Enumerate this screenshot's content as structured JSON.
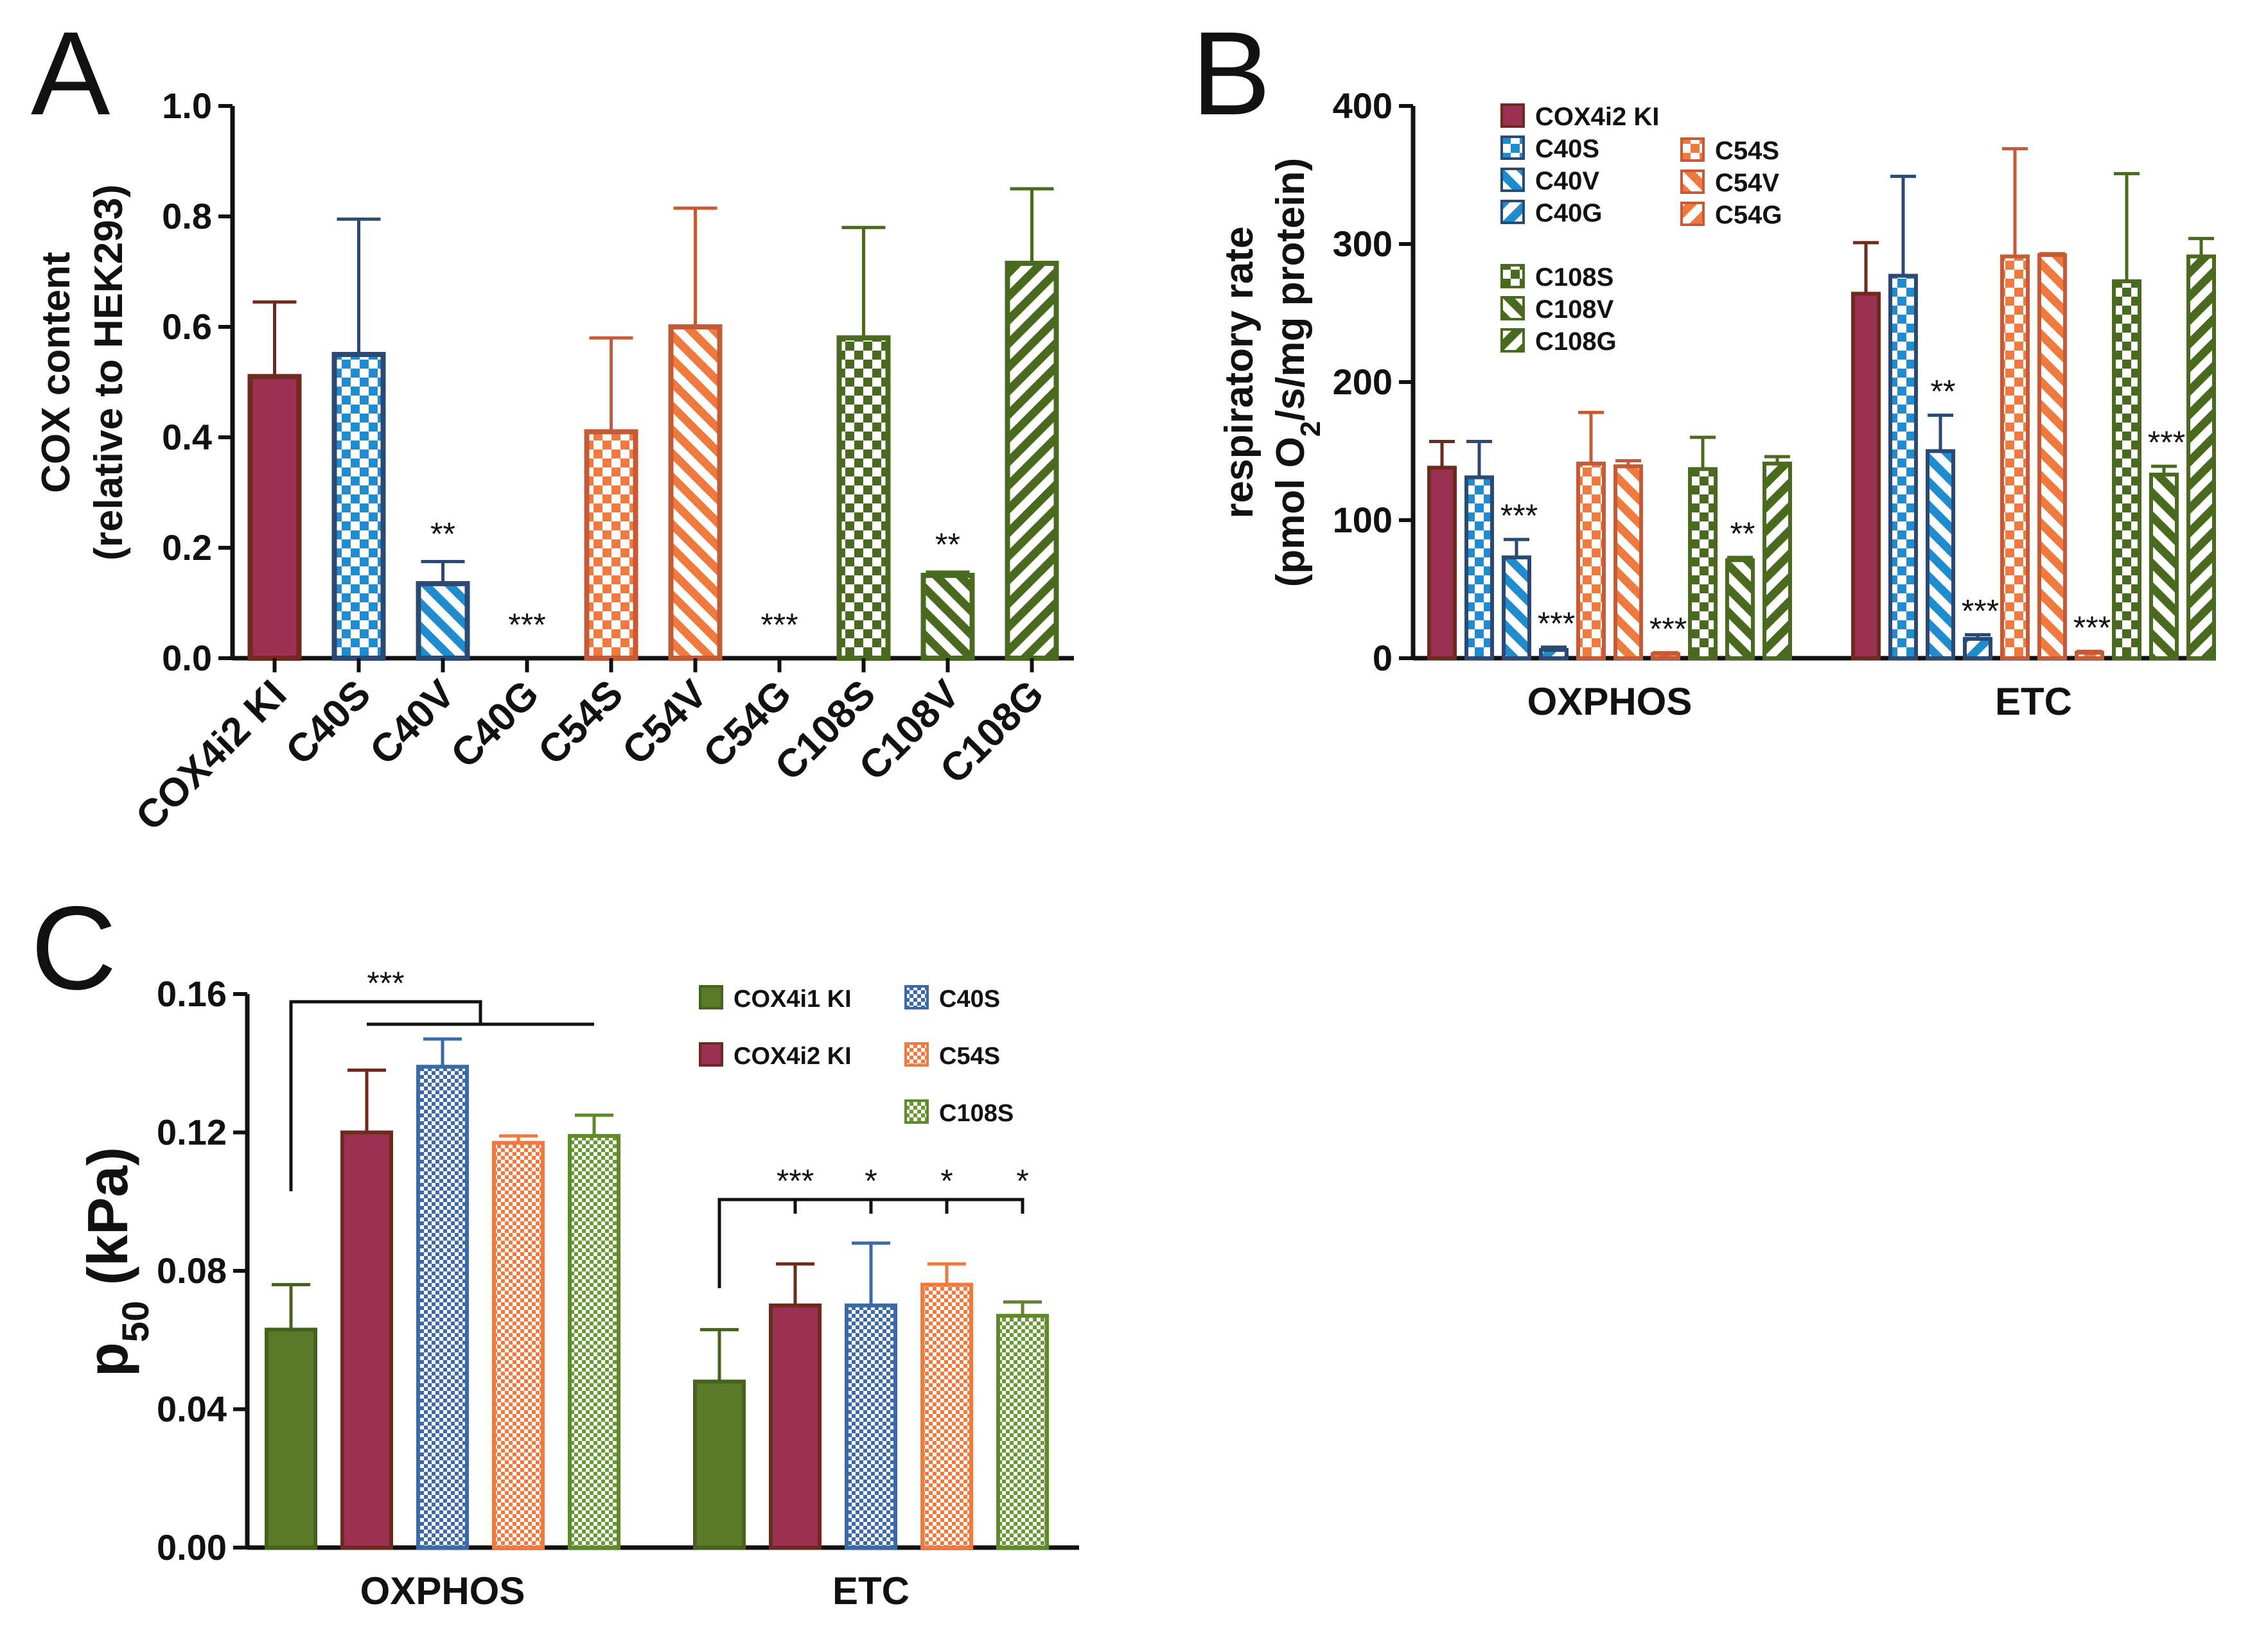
{
  "colors": {
    "cox4i2": "#9a3152",
    "cox4i2_edge": "#6e2a1c",
    "c40": "#1f8ccf",
    "c40_edge": "#2b4a73",
    "c54": "#f07a3e",
    "c54_edge": "#c45b35",
    "c108": "#4a6b1f",
    "cox4i1": "#5a7a2a"
  },
  "chart_data": [
    {
      "panel": "A",
      "type": "bar",
      "ylabel_line1": "COX content",
      "ylabel_line2": "(relative to HEK293)",
      "ylim": [
        0,
        1.0
      ],
      "yticks": [
        "0.0",
        "0.2",
        "0.4",
        "0.6",
        "0.8",
        "1.0"
      ],
      "categories": [
        "COX4i2 KI",
        "C40S",
        "C40V",
        "C40G",
        "C54S",
        "C54V",
        "C54G",
        "C108S",
        "C108V",
        "C108G"
      ],
      "values": [
        0.51,
        0.55,
        0.135,
        0,
        0.41,
        0.6,
        0,
        0.58,
        0.15,
        0.715
      ],
      "errors": [
        0.135,
        0.245,
        0.04,
        0,
        0.17,
        0.215,
        0,
        0.2,
        0.006,
        0.135
      ],
      "significance": [
        "",
        "",
        "**",
        "***",
        "",
        "",
        "***",
        "",
        "**",
        ""
      ]
    },
    {
      "panel": "B",
      "type": "bar",
      "ylabel_line1": "respiratory rate",
      "ylabel_line2_pre": "(pmol O",
      "ylabel_line2_sub": "2",
      "ylabel_line2_post": "/s/mg protein)",
      "ylim": [
        0,
        400
      ],
      "yticks": [
        "0",
        "100",
        "200",
        "300",
        "400"
      ],
      "groups": [
        "OXPHOS",
        "ETC"
      ],
      "series": [
        {
          "name": "COX4i2 KI",
          "values": [
            138,
            264
          ],
          "errors": [
            19,
            37
          ],
          "significance": [
            "",
            ""
          ]
        },
        {
          "name": "C40S",
          "values": [
            131,
            277
          ],
          "errors": [
            26,
            72
          ],
          "significance": [
            "",
            ""
          ]
        },
        {
          "name": "C40V",
          "values": [
            73,
            150
          ],
          "errors": [
            13,
            26
          ],
          "significance": [
            "***",
            "**"
          ]
        },
        {
          "name": "C40G",
          "values": [
            6,
            14
          ],
          "errors": [
            2,
            3
          ],
          "significance": [
            "***",
            "***"
          ]
        },
        {
          "name": "C54S",
          "values": [
            141,
            291
          ],
          "errors": [
            37,
            78
          ],
          "significance": [
            "",
            ""
          ]
        },
        {
          "name": "C54V",
          "values": [
            139,
            292
          ],
          "errors": [
            4,
            1
          ],
          "significance": [
            "",
            ""
          ]
        },
        {
          "name": "C54G",
          "values": [
            3,
            4
          ],
          "errors": [
            1,
            1
          ],
          "significance": [
            "***",
            "***"
          ]
        },
        {
          "name": "C108S",
          "values": [
            137,
            273
          ],
          "errors": [
            23,
            78
          ],
          "significance": [
            "",
            ""
          ]
        },
        {
          "name": "C108V",
          "values": [
            71,
            133
          ],
          "errors": [
            2,
            6
          ],
          "significance": [
            "**",
            "***"
          ]
        },
        {
          "name": "C108G",
          "values": [
            141,
            291
          ],
          "errors": [
            5,
            13
          ],
          "significance": [
            "",
            ""
          ]
        }
      ]
    },
    {
      "panel": "C",
      "type": "bar",
      "ylabel_main": "p",
      "ylabel_sub": "50",
      "ylabel_unit": " (kPa)",
      "ylim": [
        0,
        0.16
      ],
      "yticks": [
        "0.00",
        "0.04",
        "0.08",
        "0.12",
        "0.16"
      ],
      "groups": [
        "OXPHOS",
        "ETC"
      ],
      "series": [
        {
          "name": "COX4i1 KI",
          "values": [
            0.063,
            0.048
          ],
          "errors": [
            0.013,
            0.015
          ]
        },
        {
          "name": "COX4i2 KI",
          "values": [
            0.12,
            0.07
          ],
          "errors": [
            0.018,
            0.012
          ]
        },
        {
          "name": "C40S",
          "values": [
            0.139,
            0.07
          ],
          "errors": [
            0.008,
            0.018
          ]
        },
        {
          "name": "C54S",
          "values": [
            0.117,
            0.076
          ],
          "errors": [
            0.002,
            0.006
          ]
        },
        {
          "name": "C108S",
          "values": [
            0.119,
            0.067
          ],
          "errors": [
            0.006,
            0.004
          ]
        }
      ],
      "oxphos_significance": "***",
      "etc_significance": [
        "***",
        "*",
        "*",
        "*"
      ]
    }
  ],
  "panel_labels": [
    "A",
    "B",
    "C"
  ]
}
